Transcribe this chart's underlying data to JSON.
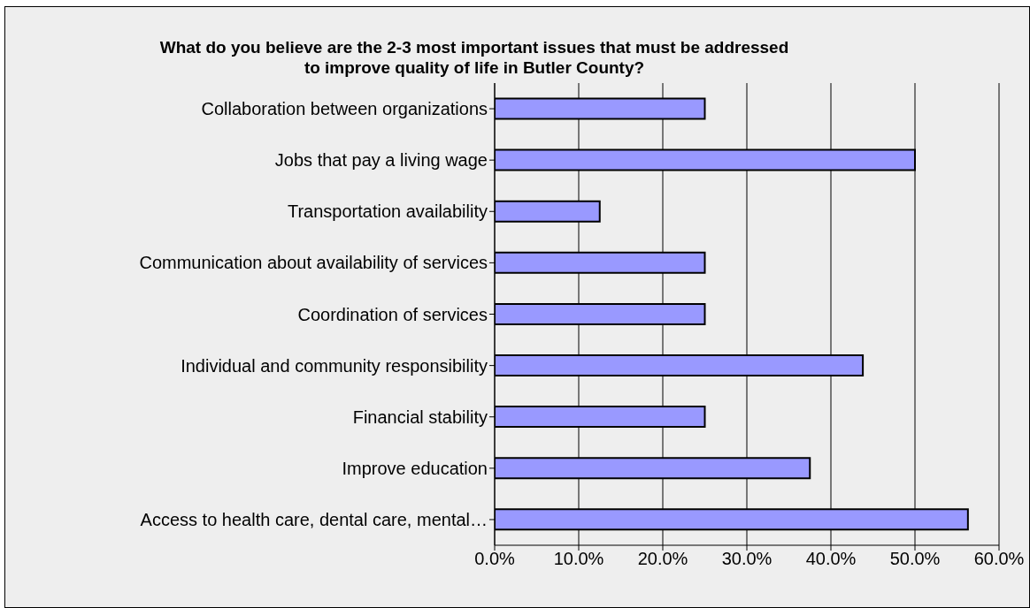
{
  "chart_data": {
    "type": "bar",
    "orientation": "horizontal",
    "title": "What do you believe are the 2-3 most important issues that must be addressed to improve quality of life in Butler County?",
    "categories": [
      "Collaboration between organizations",
      "Jobs that pay a living wage",
      "Transportation availability",
      "Communication about availability of services",
      "Coordination of services",
      "Individual and community responsibility",
      "Financial stability",
      "Improve education",
      "Access to health care, dental care, mental…"
    ],
    "values": [
      25,
      50,
      12.5,
      25,
      25,
      43.8,
      25,
      37.5,
      56.3
    ],
    "color": "#9999ff",
    "xlim": [
      0,
      60
    ],
    "xticks": [
      {
        "value": 0,
        "label": "0.0%"
      },
      {
        "value": 10,
        "label": "10.0%"
      },
      {
        "value": 20,
        "label": "20.0%"
      },
      {
        "value": 30,
        "label": "30.0%"
      },
      {
        "value": 40,
        "label": "40.0%"
      },
      {
        "value": 50,
        "label": "50.0%"
      },
      {
        "value": 60,
        "label": "60.0%"
      }
    ],
    "grid": "x",
    "legend": false
  }
}
